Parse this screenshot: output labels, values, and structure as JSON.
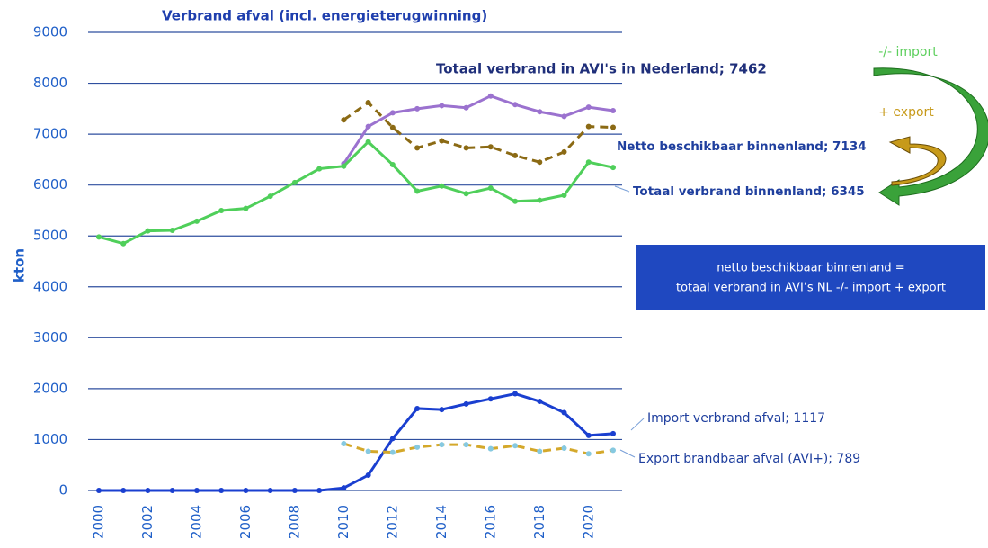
{
  "chart_data": {
    "type": "line",
    "title": "Verbrand  afval (incl. energieterugwinning)",
    "y_label": "kton",
    "x": [
      2000,
      2001,
      2002,
      2003,
      2004,
      2005,
      2006,
      2007,
      2008,
      2009,
      2010,
      2011,
      2012,
      2013,
      2014,
      2015,
      2016,
      2017,
      2018,
      2019,
      2020,
      2021
    ],
    "xlim": [
      1999.6,
      2021.4
    ],
    "xticks": [
      2000,
      2002,
      2004,
      2006,
      2008,
      2010,
      2012,
      2014,
      2016,
      2018,
      2020
    ],
    "ylim": [
      0,
      9000
    ],
    "yticks": [
      0,
      1000,
      2000,
      3000,
      4000,
      5000,
      6000,
      7000,
      8000,
      9000
    ],
    "grid": true,
    "series": [
      {
        "name": "Totaal verbrand  in AVI's in Nederland; 7462",
        "color": "#9b72cf",
        "dashed": false,
        "values": [
          null,
          null,
          null,
          null,
          null,
          null,
          null,
          null,
          null,
          null,
          6420,
          7150,
          7420,
          7500,
          7560,
          7520,
          7750,
          7580,
          7440,
          7350,
          7530,
          7462
        ]
      },
      {
        "name": "Netto beschikbaar binnenland; 7134",
        "color": "#8b6a14",
        "dashed": true,
        "values": [
          null,
          null,
          null,
          null,
          null,
          null,
          null,
          null,
          null,
          null,
          7280,
          7620,
          7130,
          6730,
          6870,
          6730,
          6750,
          6580,
          6450,
          6650,
          7150,
          7134
        ]
      },
      {
        "name": "Totaal verbrand binnenland; 6345",
        "color": "#4fcf5a",
        "dashed": false,
        "values": [
          4980,
          4850,
          5100,
          5110,
          5290,
          5500,
          5540,
          5780,
          6050,
          6320,
          6370,
          6850,
          6400,
          5880,
          5980,
          5830,
          5940,
          5680,
          5700,
          5800,
          6450,
          6345
        ]
      },
      {
        "name": "Import verbrand afval; 1117",
        "color": "#1a3fd0",
        "dashed": false,
        "values": [
          0,
          0,
          0,
          0,
          0,
          0,
          0,
          0,
          0,
          0,
          50,
          300,
          1020,
          1610,
          1590,
          1700,
          1800,
          1900,
          1750,
          1530,
          1080,
          1117
        ]
      },
      {
        "name": "Export brandbaar afval (AVI+); 789",
        "color": "#d4a82a",
        "marker_color": "#86c9e0",
        "dashed": true,
        "values": [
          null,
          null,
          null,
          null,
          null,
          null,
          null,
          null,
          null,
          null,
          920,
          770,
          750,
          850,
          900,
          900,
          820,
          880,
          770,
          830,
          720,
          789
        ]
      }
    ],
    "annotations": [
      "-/- import",
      "+ export"
    ],
    "note_lines": [
      "netto beschikbaar binnenland =",
      "totaal verbrand in AVI’s NL -/- import + export"
    ]
  }
}
